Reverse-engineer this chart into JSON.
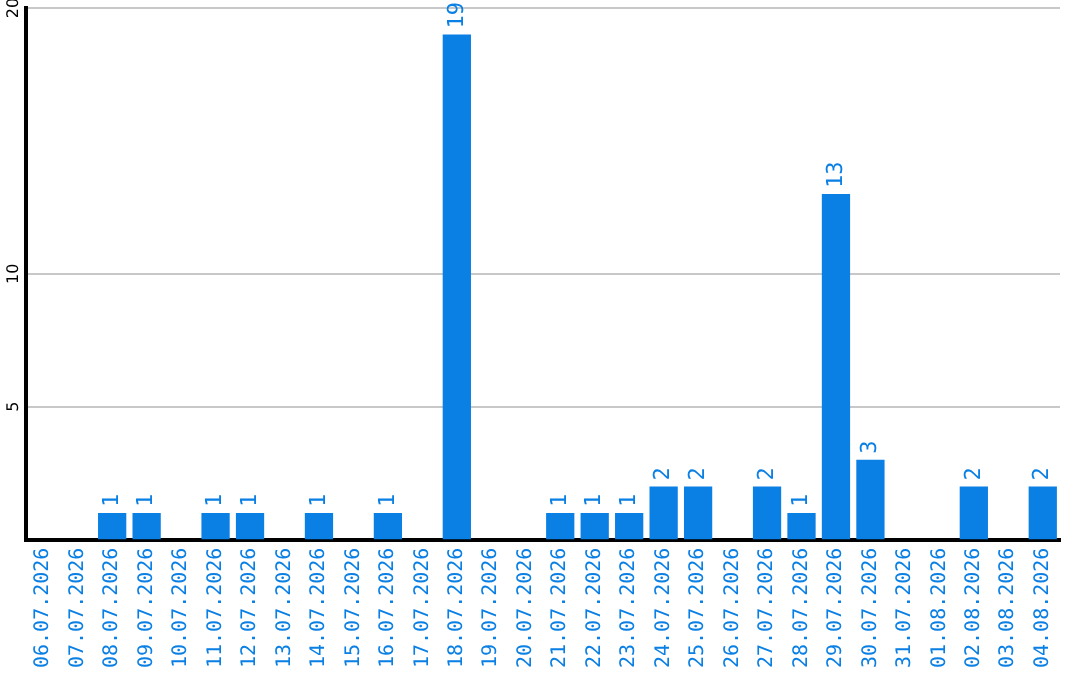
{
  "chart_data": {
    "type": "bar",
    "categories": [
      "06.07.2026",
      "07.07.2026",
      "08.07.2026",
      "09.07.2026",
      "10.07.2026",
      "11.07.2026",
      "12.07.2026",
      "13.07.2026",
      "14.07.2026",
      "15.07.2026",
      "16.07.2026",
      "17.07.2026",
      "18.07.2026",
      "19.07.2026",
      "20.07.2026",
      "21.07.2026",
      "22.07.2026",
      "23.07.2026",
      "24.07.2026",
      "25.07.2026",
      "26.07.2026",
      "27.07.2026",
      "28.07.2026",
      "29.07.2026",
      "30.07.2026",
      "31.07.2026",
      "01.08.2026",
      "02.08.2026",
      "03.08.2026",
      "04.08.2026"
    ],
    "values": [
      0,
      0,
      1,
      1,
      0,
      1,
      1,
      0,
      1,
      0,
      1,
      0,
      19,
      0,
      0,
      1,
      1,
      1,
      2,
      2,
      0,
      2,
      1,
      13,
      3,
      0,
      0,
      2,
      0,
      2
    ],
    "value_labels": [
      null,
      null,
      "1",
      "1",
      null,
      "1",
      "1",
      null,
      "1",
      null,
      "1",
      null,
      "19",
      null,
      null,
      "1",
      "1",
      "1",
      "2",
      "2",
      null,
      "2",
      "1",
      "13",
      "3",
      null,
      null,
      "2",
      null,
      "2"
    ],
    "color": "#0a7fe4",
    "ylim": [
      0,
      20
    ],
    "yticks": [
      5,
      10,
      20
    ],
    "grid": "y",
    "legend": false
  }
}
